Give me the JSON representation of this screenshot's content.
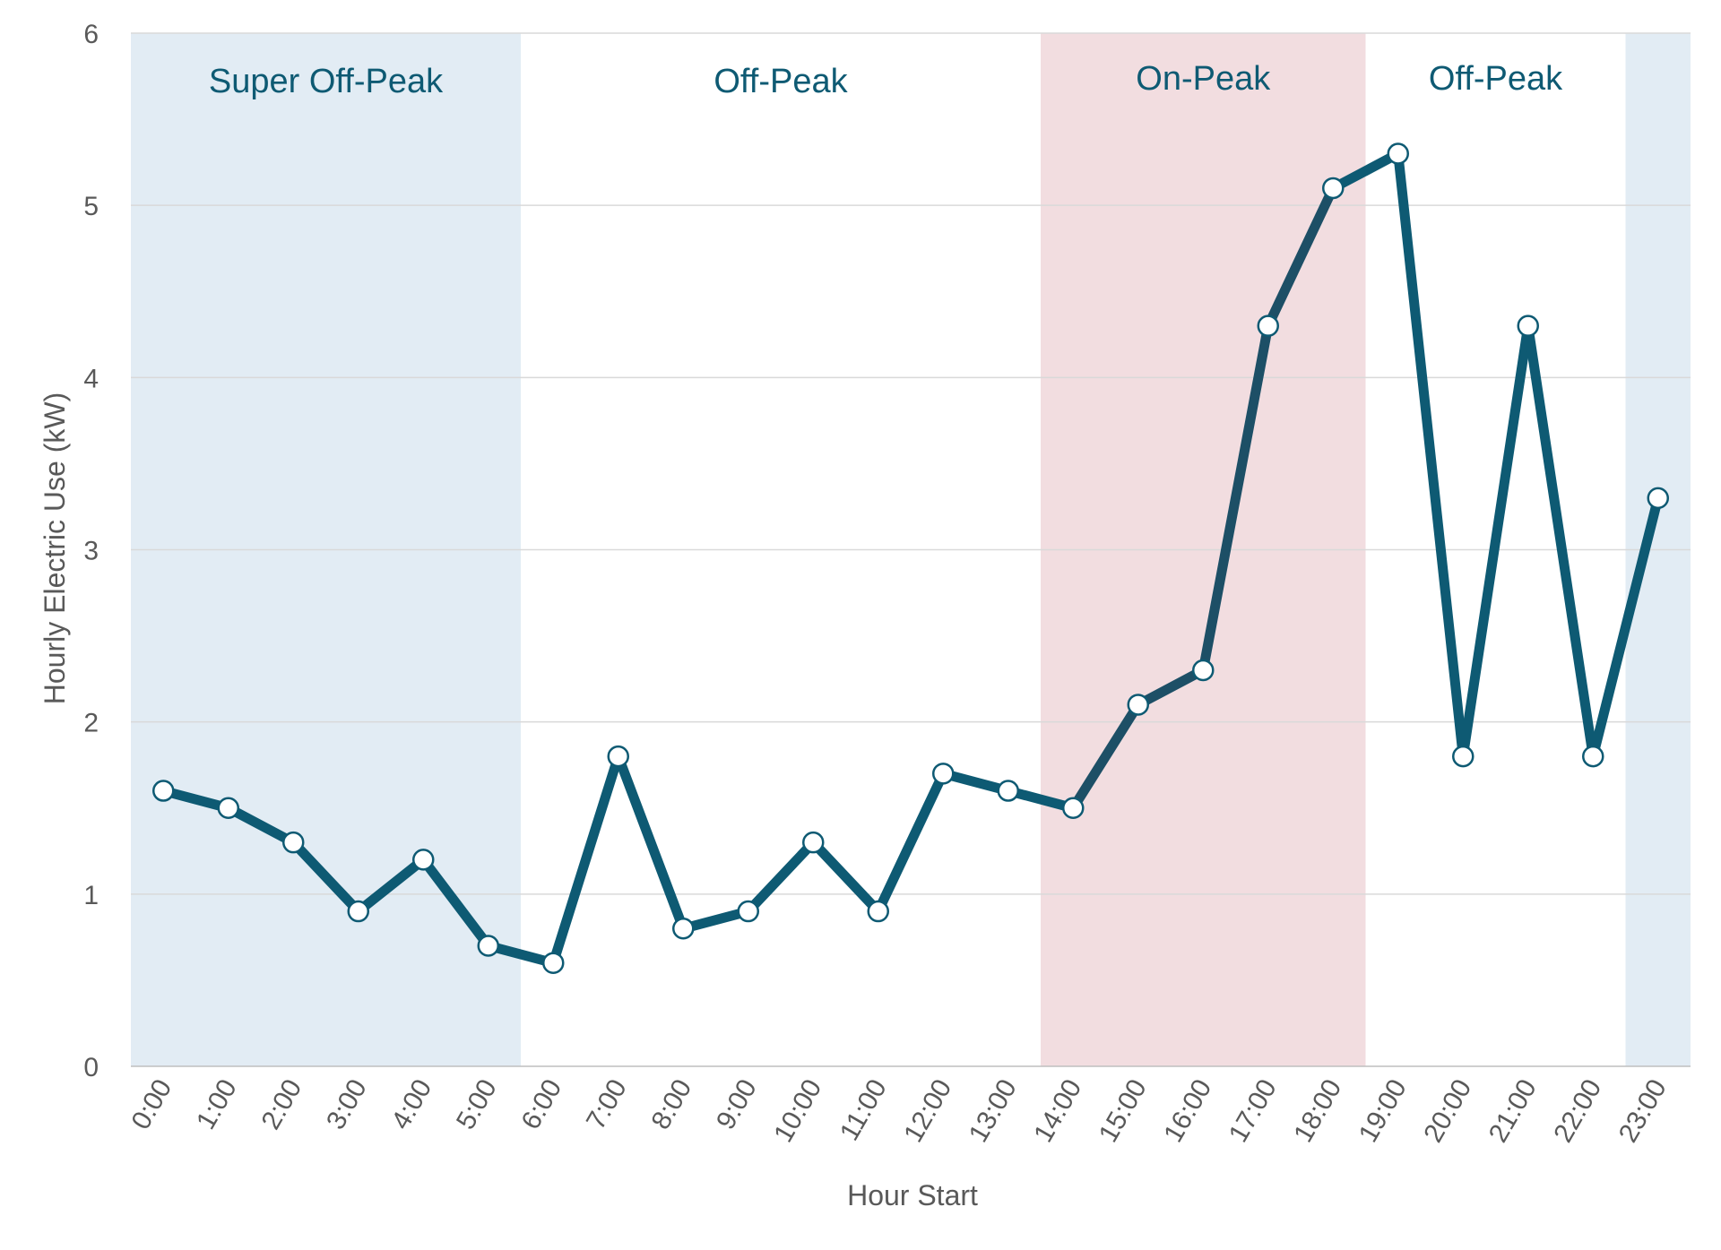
{
  "chart_data": {
    "type": "line",
    "title": "",
    "xlabel": "Hour Start",
    "ylabel": "Hourly Electric Use (kW)",
    "ylim": [
      0,
      6
    ],
    "yticks": [
      "0",
      "1",
      "2",
      "3",
      "4",
      "5",
      "6"
    ],
    "grid": true,
    "categories": [
      "0:00",
      "1:00",
      "2:00",
      "3:00",
      "4:00",
      "5:00",
      "6:00",
      "7:00",
      "8:00",
      "9:00",
      "10:00",
      "11:00",
      "12:00",
      "13:00",
      "14:00",
      "15:00",
      "16:00",
      "17:00",
      "18:00",
      "19:00",
      "20:00",
      "21:00",
      "22:00",
      "23:00"
    ],
    "series": [
      {
        "values": [
          1.6,
          1.5,
          1.3,
          0.9,
          1.2,
          0.7,
          0.6,
          1.8,
          0.8,
          0.9,
          1.3,
          0.9,
          1.7,
          1.6,
          1.5,
          2.1,
          2.3,
          4.3,
          5.1,
          5.3,
          1.8,
          4.3,
          1.8,
          3.3
        ]
      }
    ],
    "periods": [
      {
        "label": "Super Off-Peak",
        "from": 0,
        "to": 5,
        "color": "#e2ecf4"
      },
      {
        "label": "Off-Peak",
        "from": 6,
        "to": 13,
        "color": "#ffffff"
      },
      {
        "label": "On-Peak",
        "from": 14,
        "to": 18,
        "color": "#f2dde0"
      },
      {
        "label": "Off-Peak",
        "from": 19,
        "to": 22,
        "color": "#ffffff"
      },
      {
        "label": "",
        "from": 23,
        "to": 23,
        "color": "#e2ecf4"
      }
    ],
    "colors": {
      "line": "#0e5a73",
      "line_on_peak": "#1d4f66",
      "marker_fill": "#ffffff",
      "grid": "#d9d9d9",
      "label": "#0e5a73"
    }
  }
}
